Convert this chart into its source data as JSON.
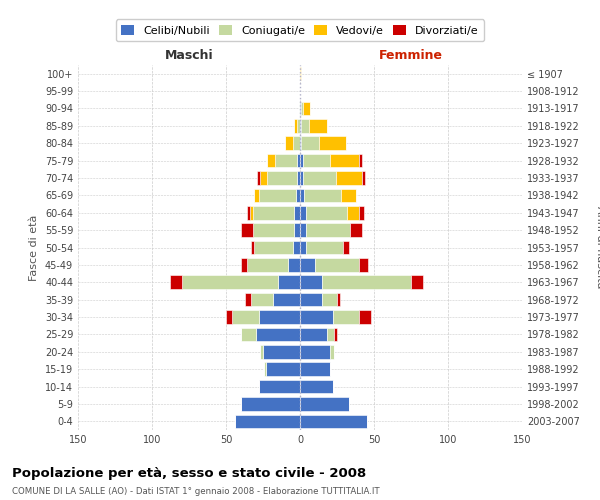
{
  "age_groups": [
    "0-4",
    "5-9",
    "10-14",
    "15-19",
    "20-24",
    "25-29",
    "30-34",
    "35-39",
    "40-44",
    "45-49",
    "50-54",
    "55-59",
    "60-64",
    "65-69",
    "70-74",
    "75-79",
    "80-84",
    "85-89",
    "90-94",
    "95-99",
    "100+"
  ],
  "birth_years": [
    "2003-2007",
    "1998-2002",
    "1993-1997",
    "1988-1992",
    "1983-1987",
    "1978-1982",
    "1973-1977",
    "1968-1972",
    "1963-1967",
    "1958-1962",
    "1953-1957",
    "1948-1952",
    "1943-1947",
    "1938-1942",
    "1933-1937",
    "1928-1932",
    "1923-1927",
    "1918-1922",
    "1913-1917",
    "1908-1912",
    "≤ 1907"
  ],
  "colors": {
    "celibi": "#4472c4",
    "coniugati": "#c5d9a0",
    "vedovi": "#ffc000",
    "divorziati": "#cc0000"
  },
  "maschi": {
    "celibi": [
      44,
      40,
      28,
      23,
      25,
      30,
      28,
      18,
      15,
      8,
      5,
      4,
      4,
      3,
      2,
      2,
      0,
      0,
      0,
      0,
      0
    ],
    "coniugati": [
      0,
      0,
      0,
      1,
      2,
      10,
      18,
      15,
      65,
      28,
      26,
      28,
      28,
      25,
      20,
      15,
      5,
      2,
      1,
      0,
      0
    ],
    "vedovi": [
      0,
      0,
      0,
      0,
      0,
      0,
      0,
      0,
      0,
      0,
      0,
      0,
      2,
      3,
      5,
      5,
      5,
      2,
      0,
      0,
      0
    ],
    "divorziati": [
      0,
      0,
      0,
      0,
      0,
      0,
      4,
      4,
      8,
      4,
      2,
      8,
      2,
      0,
      2,
      0,
      0,
      0,
      0,
      0,
      0
    ]
  },
  "femmine": {
    "celibi": [
      45,
      33,
      22,
      20,
      20,
      18,
      22,
      15,
      15,
      10,
      4,
      4,
      4,
      3,
      2,
      2,
      1,
      1,
      1,
      0,
      0
    ],
    "coniugati": [
      0,
      0,
      0,
      0,
      3,
      5,
      18,
      10,
      60,
      30,
      25,
      30,
      28,
      25,
      22,
      18,
      12,
      5,
      1,
      0,
      0
    ],
    "vedovi": [
      0,
      0,
      0,
      0,
      0,
      0,
      0,
      0,
      0,
      0,
      0,
      0,
      8,
      10,
      18,
      20,
      18,
      12,
      5,
      0,
      1
    ],
    "divorziati": [
      0,
      0,
      0,
      0,
      0,
      2,
      8,
      2,
      8,
      6,
      4,
      8,
      3,
      0,
      2,
      2,
      0,
      0,
      0,
      0,
      0
    ]
  },
  "xlim": 150,
  "xticks": [
    -150,
    -100,
    -50,
    0,
    50,
    100,
    150
  ],
  "title": "Popolazione per età, sesso e stato civile - 2008",
  "subtitle": "COMUNE DI LA SALLE (AO) - Dati ISTAT 1° gennaio 2008 - Elaborazione TUTTITALIA.IT",
  "ylabel_left": "Fasce di età",
  "ylabel_right": "Anni di nascita",
  "xlabel_left": "Maschi",
  "xlabel_right": "Femmine",
  "legend_labels": [
    "Celibi/Nubili",
    "Coniugati/e",
    "Vedovi/e",
    "Divorziati/e"
  ],
  "bg_color": "#ffffff",
  "grid_color": "#cccccc",
  "bar_height": 0.78
}
